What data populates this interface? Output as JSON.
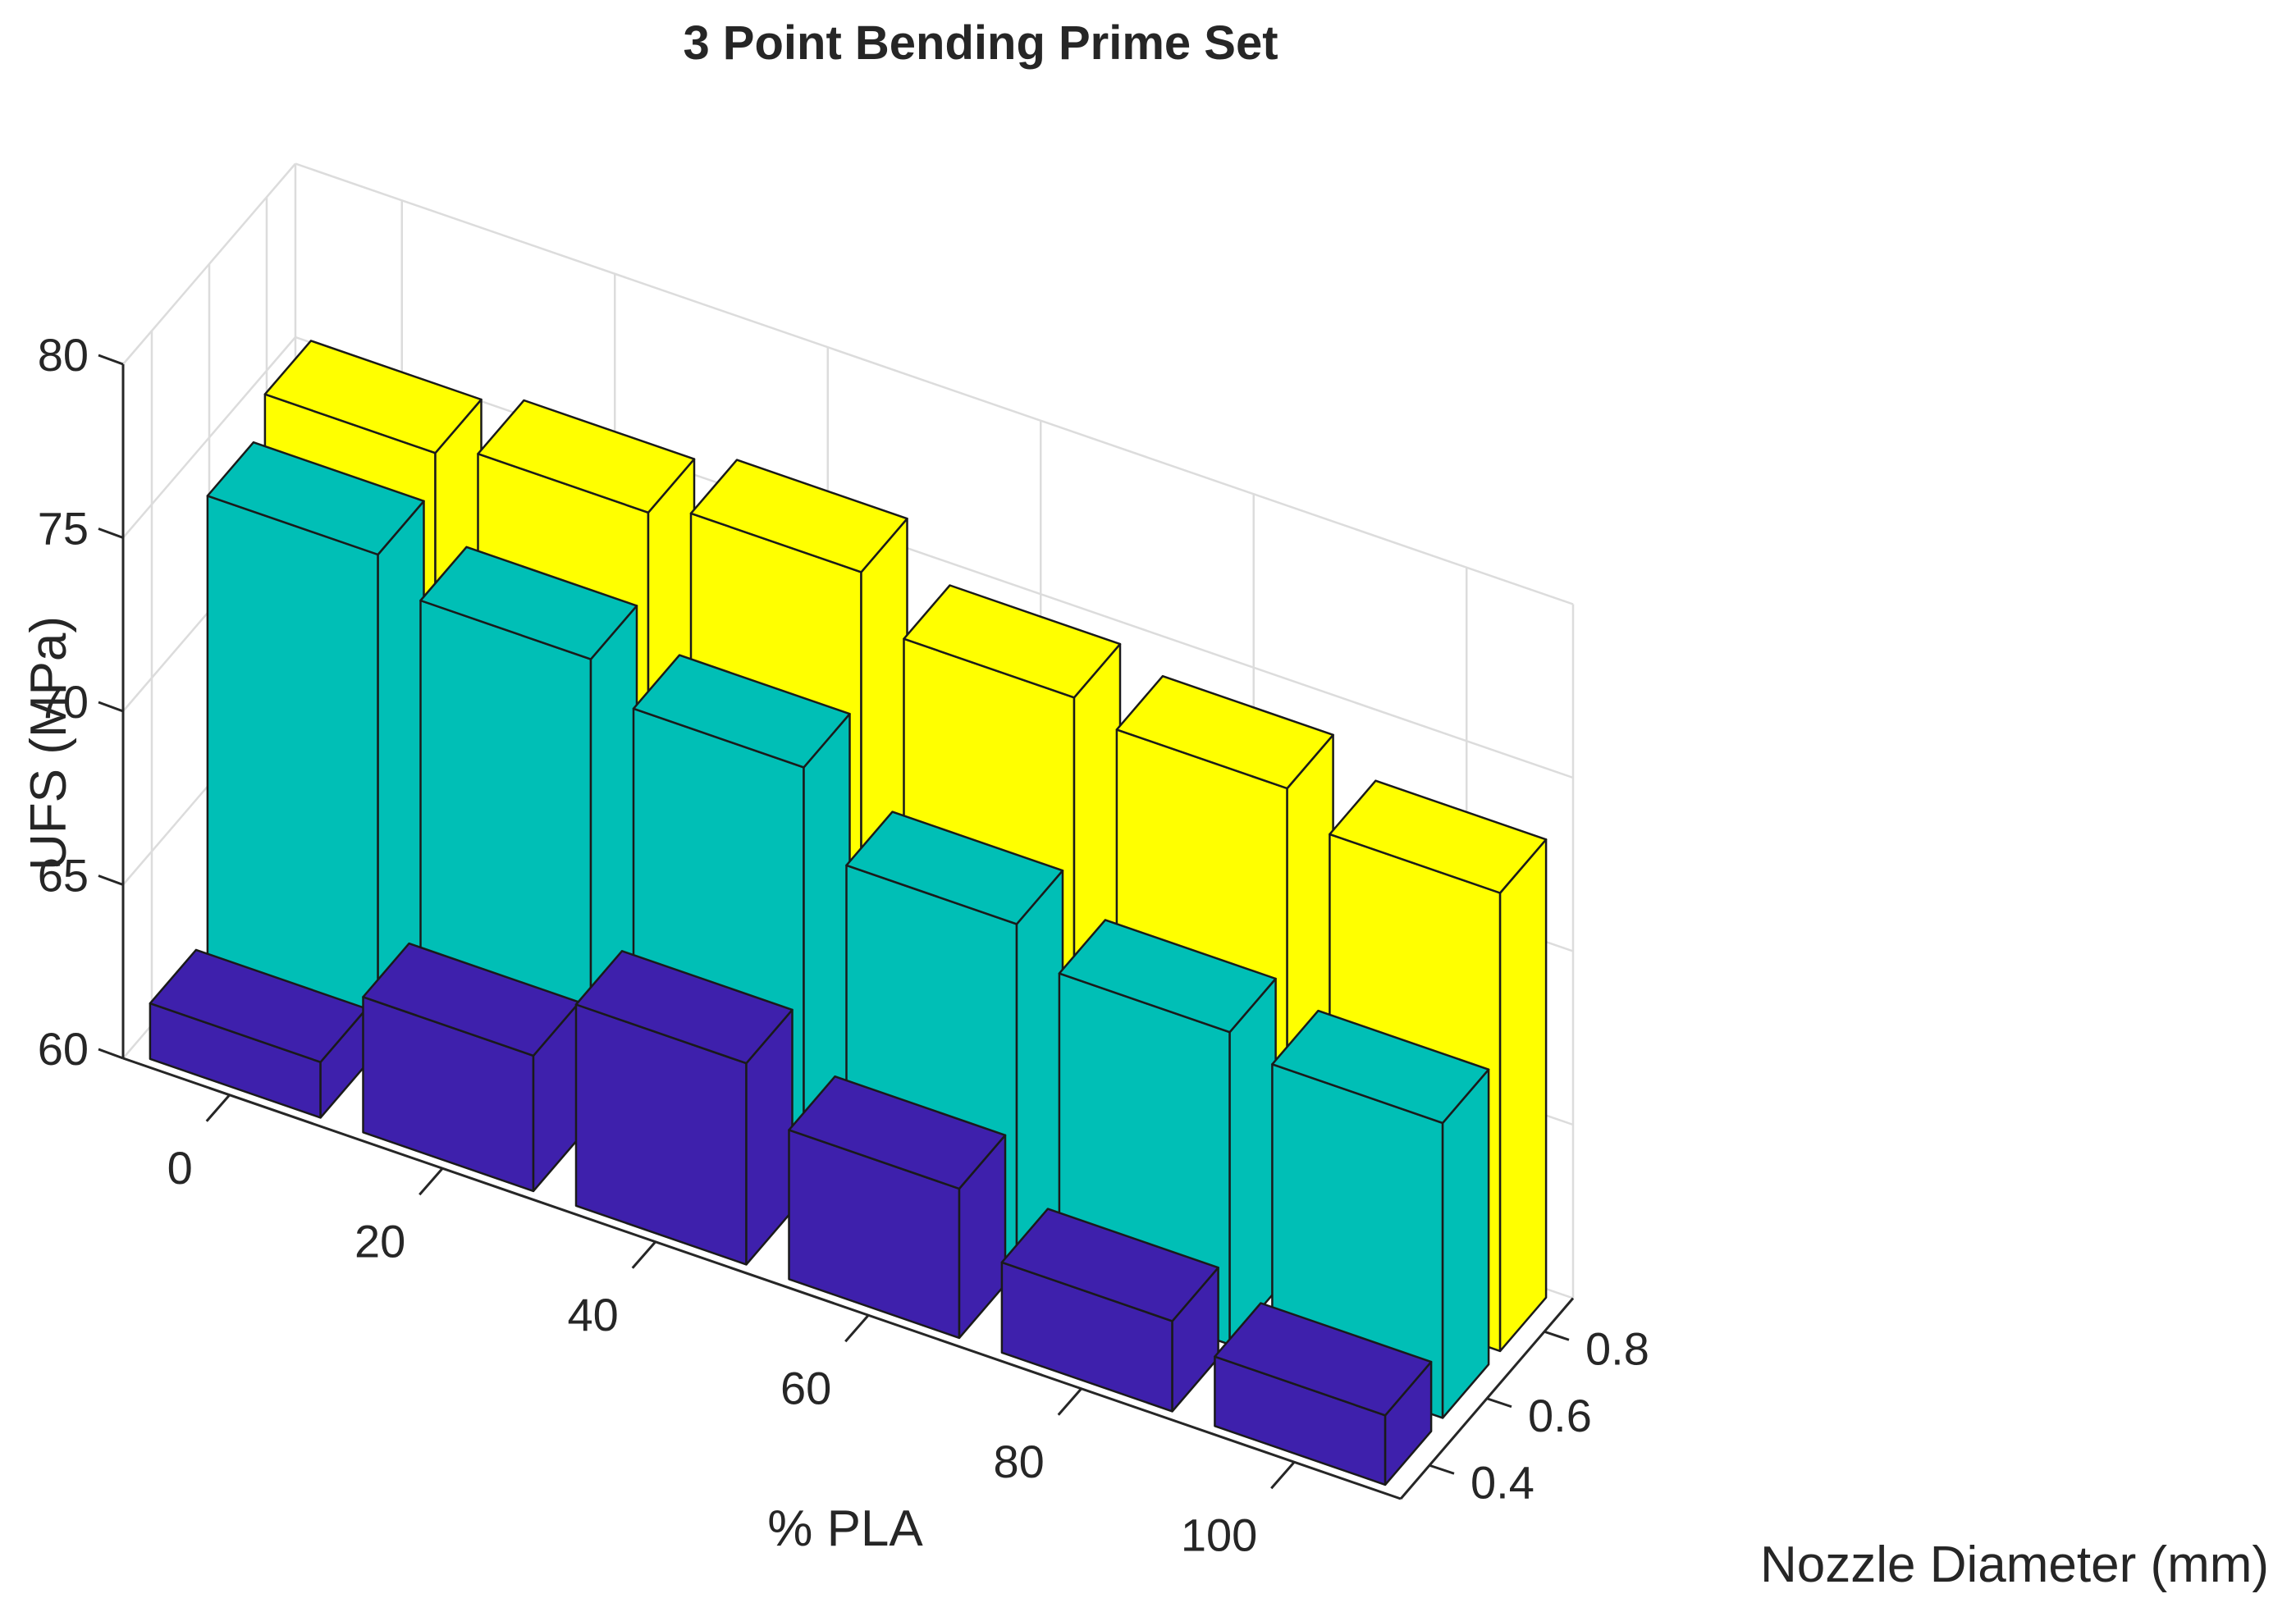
{
  "chart_data": {
    "type": "bar3d",
    "title": "3 Point Bending Prime Set",
    "xlabel": "% PLA",
    "ylabel": "Nozzle Diameter (mm)",
    "zlabel": "UFS (MPa)",
    "x_ticks": [
      "0",
      "20",
      "40",
      "60",
      "80",
      "100"
    ],
    "y_ticks": [
      "0.4",
      "0.6",
      "0.8"
    ],
    "z_ticks": [
      "60",
      "65",
      "70",
      "75",
      "80"
    ],
    "zlim": [
      60,
      80
    ],
    "grid": true,
    "series": [
      {
        "nozzle": "0.4",
        "color": "#3e20ac",
        "values": [
          61.6,
          63.9,
          65.8,
          64.3,
          62.6,
          62.0
        ]
      },
      {
        "nozzle": "0.6",
        "color": "#00bfb6",
        "values": [
          74.3,
          73.4,
          72.4,
          70.0,
          69.0,
          68.5
        ]
      },
      {
        "nozzle": "0.8",
        "color": "#ffff00",
        "values": [
          75.3,
          75.7,
          76.1,
          74.6,
          74.1,
          73.2
        ]
      }
    ]
  }
}
